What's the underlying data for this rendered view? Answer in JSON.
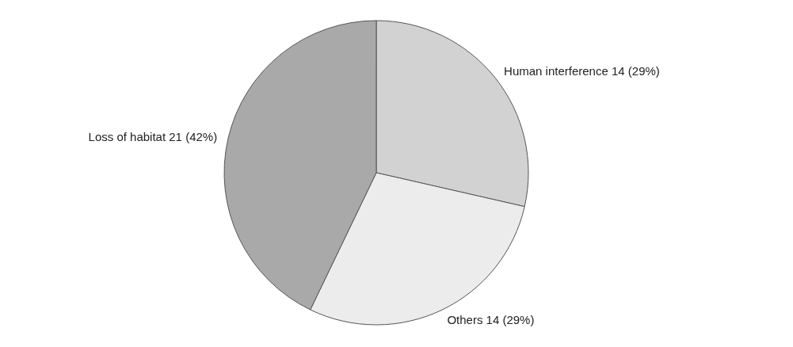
{
  "chart_data": {
    "type": "pie",
    "categories": [
      "Human interference",
      "Others",
      "Loss of habitat"
    ],
    "values": [
      14,
      14,
      21
    ],
    "value_labels": [
      "14 (29%)",
      "14 (29%)",
      "21 (42%)"
    ],
    "colors": [
      "#d2d2d2",
      "#ececec",
      "#a9a9a9"
    ]
  }
}
